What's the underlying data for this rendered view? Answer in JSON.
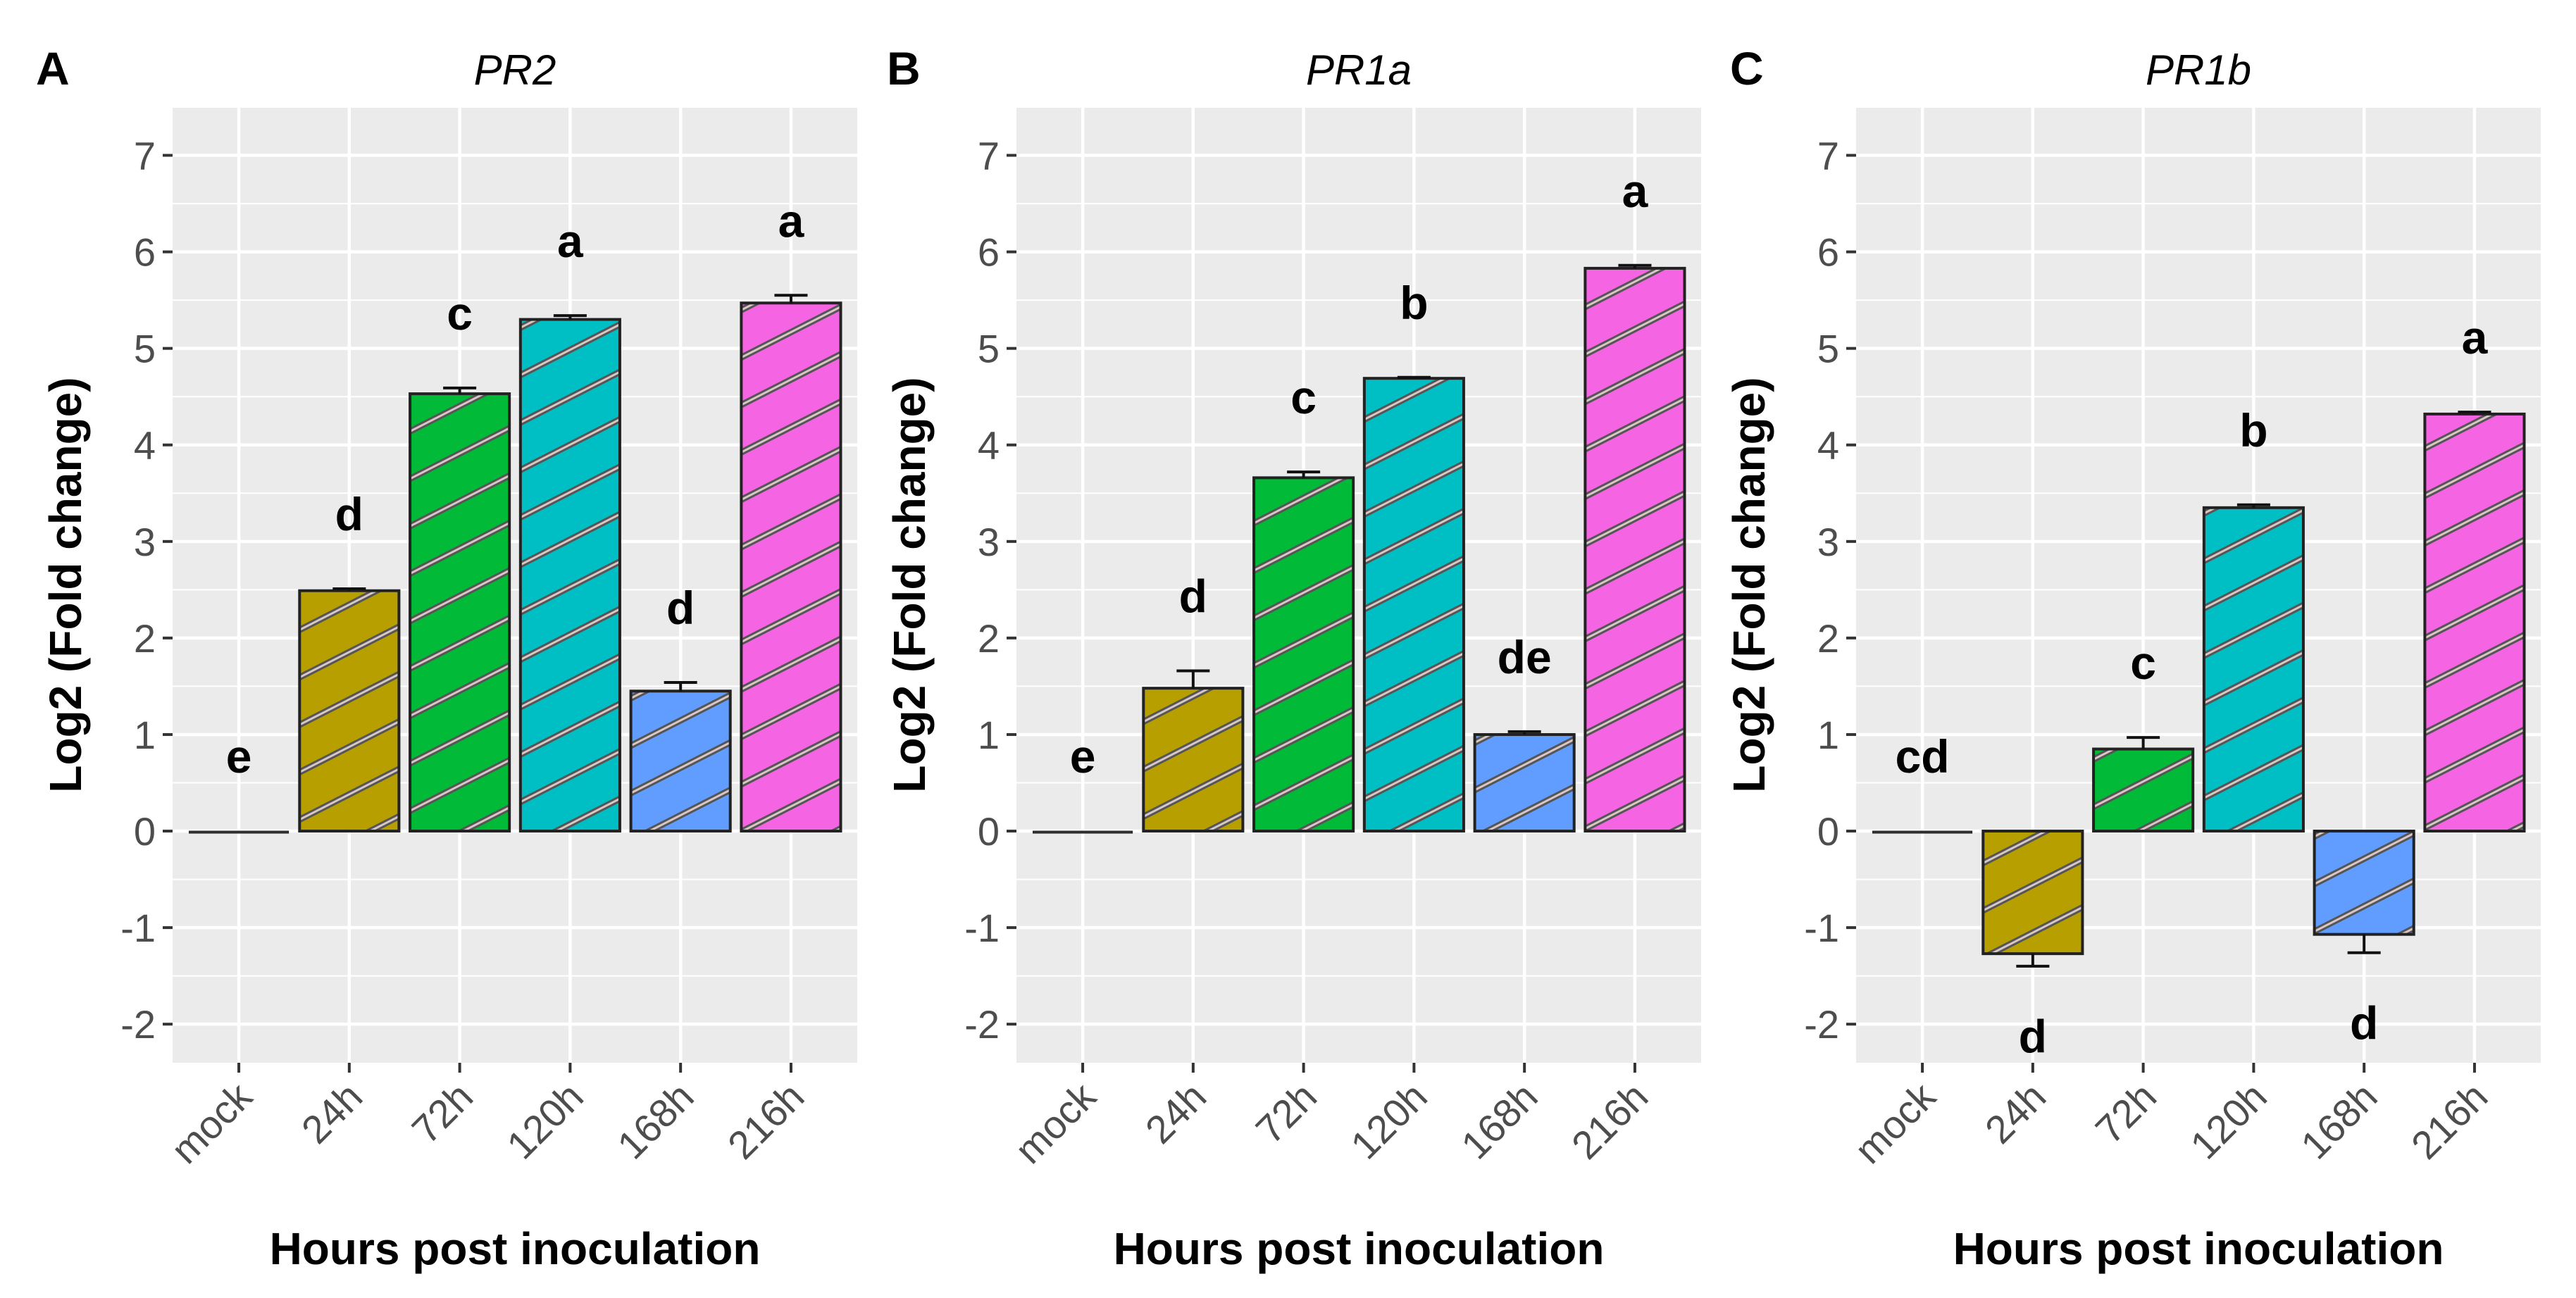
{
  "chart_data": [
    {
      "type": "bar",
      "panel_label": "A",
      "title": "PR2",
      "xlabel": "Hours post inoculation",
      "ylabel": "Log2 (Fold change)",
      "categories": [
        "mock",
        "24h",
        "72h",
        "120h",
        "168h",
        "216h"
      ],
      "values": [
        0,
        2.49,
        4.53,
        5.3,
        1.45,
        5.47
      ],
      "errors": [
        0,
        0.02,
        0.06,
        0.04,
        0.09,
        0.08
      ],
      "significance": [
        "e",
        "d",
        "c",
        "a",
        "d",
        "a"
      ],
      "yticks": [
        -2,
        -1,
        0,
        1,
        2,
        3,
        4,
        5,
        6,
        7
      ],
      "ylim": [
        -2.4,
        7.5
      ],
      "grid": true
    },
    {
      "type": "bar",
      "panel_label": "B",
      "title": "PR1a",
      "xlabel": "Hours post inoculation",
      "ylabel": "Log2 (Fold change)",
      "categories": [
        "mock",
        "24h",
        "72h",
        "120h",
        "168h",
        "216h"
      ],
      "values": [
        0,
        1.48,
        3.66,
        4.69,
        1.0,
        5.83
      ],
      "errors": [
        0,
        0.18,
        0.06,
        0.01,
        0.03,
        0.03
      ],
      "significance": [
        "e",
        "d",
        "c",
        "b",
        "de",
        "a"
      ],
      "yticks": [
        -2,
        -1,
        0,
        1,
        2,
        3,
        4,
        5,
        6,
        7
      ],
      "ylim": [
        -2.4,
        7.5
      ],
      "grid": true
    },
    {
      "type": "bar",
      "panel_label": "C",
      "title": "PR1b",
      "xlabel": "Hours post inoculation",
      "ylabel": "Log2 (Fold change)",
      "categories": [
        "mock",
        "24h",
        "72h",
        "120h",
        "168h",
        "216h"
      ],
      "values": [
        0,
        -1.27,
        0.85,
        3.35,
        -1.07,
        4.32
      ],
      "errors": [
        0,
        0.13,
        0.12,
        0.03,
        0.19,
        0.02
      ],
      "significance": [
        "cd",
        "d",
        "c",
        "b",
        "d",
        "a"
      ],
      "yticks": [
        -2,
        -1,
        0,
        1,
        2,
        3,
        4,
        5,
        6,
        7
      ],
      "ylim": [
        -2.4,
        7.5
      ],
      "grid": true
    }
  ],
  "colors": {
    "categories": [
      "#F8766D",
      "#B79F00",
      "#00BA38",
      "#00BFC4",
      "#619CFF",
      "#F564E3"
    ],
    "panel_background": "#EBEBEB",
    "grid": "#FFFFFF",
    "hatch": "#555555"
  }
}
